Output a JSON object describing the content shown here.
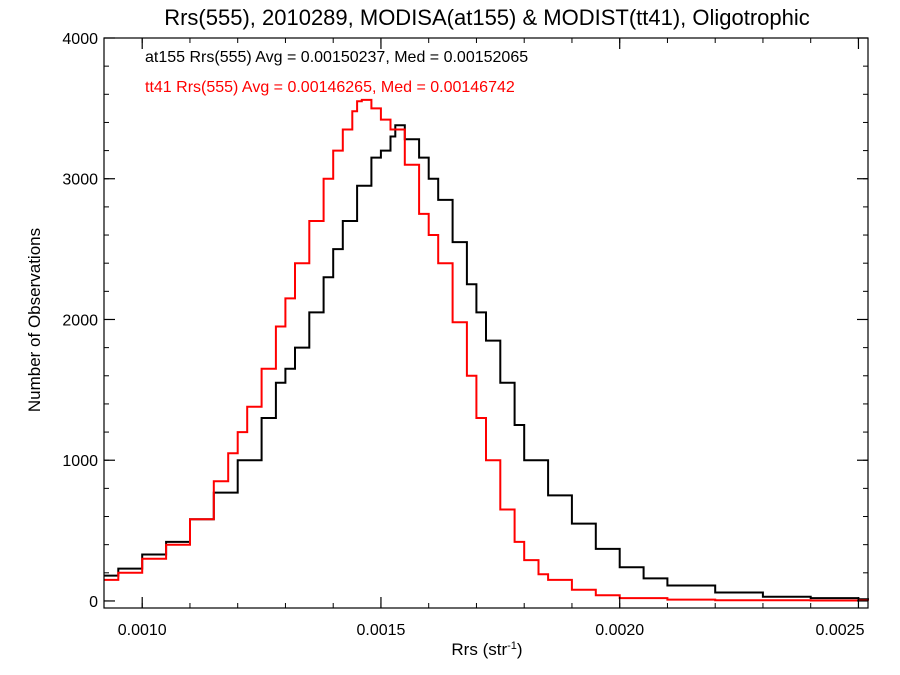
{
  "chart_data": {
    "type": "line",
    "title": "Rrs(555), 2010289, MODISA(at155) & MODIST(tt41), Oligotrophic",
    "xlabel": "Rrs (str",
    "xlabel_sup": "-1",
    "xlabel_close": ")",
    "ylabel": "Number of Observations",
    "xlim": [
      0.00092,
      0.00252
    ],
    "ylim": [
      -50,
      4000
    ],
    "x_ticks": [
      0.001,
      0.0015,
      0.002,
      0.0025
    ],
    "x_tick_labels": [
      "0.0010",
      "0.0015",
      "0.0020",
      "0.0025"
    ],
    "y_ticks": [
      0,
      1000,
      2000,
      3000,
      4000
    ],
    "y_tick_labels": [
      "0",
      "1000",
      "2000",
      "3000",
      "4000"
    ],
    "grid": false,
    "annotations": [
      {
        "text": "at155 Rrs(555) Avg = 0.00150237, Med = 0.00152065",
        "color": "#000000"
      },
      {
        "text": "tt41 Rrs(555) Avg = 0.00146265, Med = 0.00146742",
        "color": "#ff0000"
      }
    ],
    "series": [
      {
        "color": "#000000",
        "x": [
          0.00092,
          0.00095,
          0.001,
          0.00105,
          0.0011,
          0.00115,
          0.0012,
          0.00125,
          0.00128,
          0.0013,
          0.00132,
          0.00135,
          0.00138,
          0.0014,
          0.00142,
          0.00145,
          0.00148,
          0.0015,
          0.00152,
          0.00153,
          0.00155,
          0.00158,
          0.0016,
          0.00162,
          0.00165,
          0.00168,
          0.0017,
          0.00172,
          0.00175,
          0.00178,
          0.0018,
          0.00185,
          0.0019,
          0.00195,
          0.002,
          0.00205,
          0.0021,
          0.0022,
          0.0023,
          0.0024,
          0.0025,
          0.00252
        ],
        "y": [
          180,
          230,
          330,
          420,
          580,
          770,
          1000,
          1300,
          1550,
          1650,
          1800,
          2050,
          2300,
          2500,
          2700,
          2950,
          3150,
          3200,
          3300,
          3380,
          3280,
          3150,
          3000,
          2850,
          2550,
          2250,
          2050,
          1850,
          1550,
          1250,
          1000,
          750,
          550,
          370,
          240,
          160,
          110,
          60,
          30,
          20,
          12,
          10
        ]
      },
      {
        "color": "#ff0000",
        "x": [
          0.00092,
          0.00095,
          0.001,
          0.00105,
          0.0011,
          0.00115,
          0.00118,
          0.0012,
          0.00122,
          0.00125,
          0.00128,
          0.0013,
          0.00132,
          0.00135,
          0.00138,
          0.0014,
          0.00142,
          0.00144,
          0.00145,
          0.00146,
          0.00148,
          0.0015,
          0.00152,
          0.00155,
          0.00158,
          0.0016,
          0.00162,
          0.00165,
          0.00168,
          0.0017,
          0.00172,
          0.00175,
          0.00178,
          0.0018,
          0.00183,
          0.00185,
          0.0019,
          0.00195,
          0.002,
          0.0021,
          0.0022,
          0.0024,
          0.00252
        ],
        "y": [
          150,
          200,
          300,
          400,
          580,
          850,
          1050,
          1200,
          1380,
          1650,
          1950,
          2150,
          2400,
          2700,
          3000,
          3200,
          3350,
          3480,
          3550,
          3560,
          3500,
          3420,
          3350,
          3100,
          2750,
          2600,
          2400,
          1980,
          1600,
          1300,
          1000,
          650,
          420,
          290,
          190,
          150,
          80,
          40,
          20,
          10,
          5,
          3,
          2
        ]
      }
    ]
  }
}
